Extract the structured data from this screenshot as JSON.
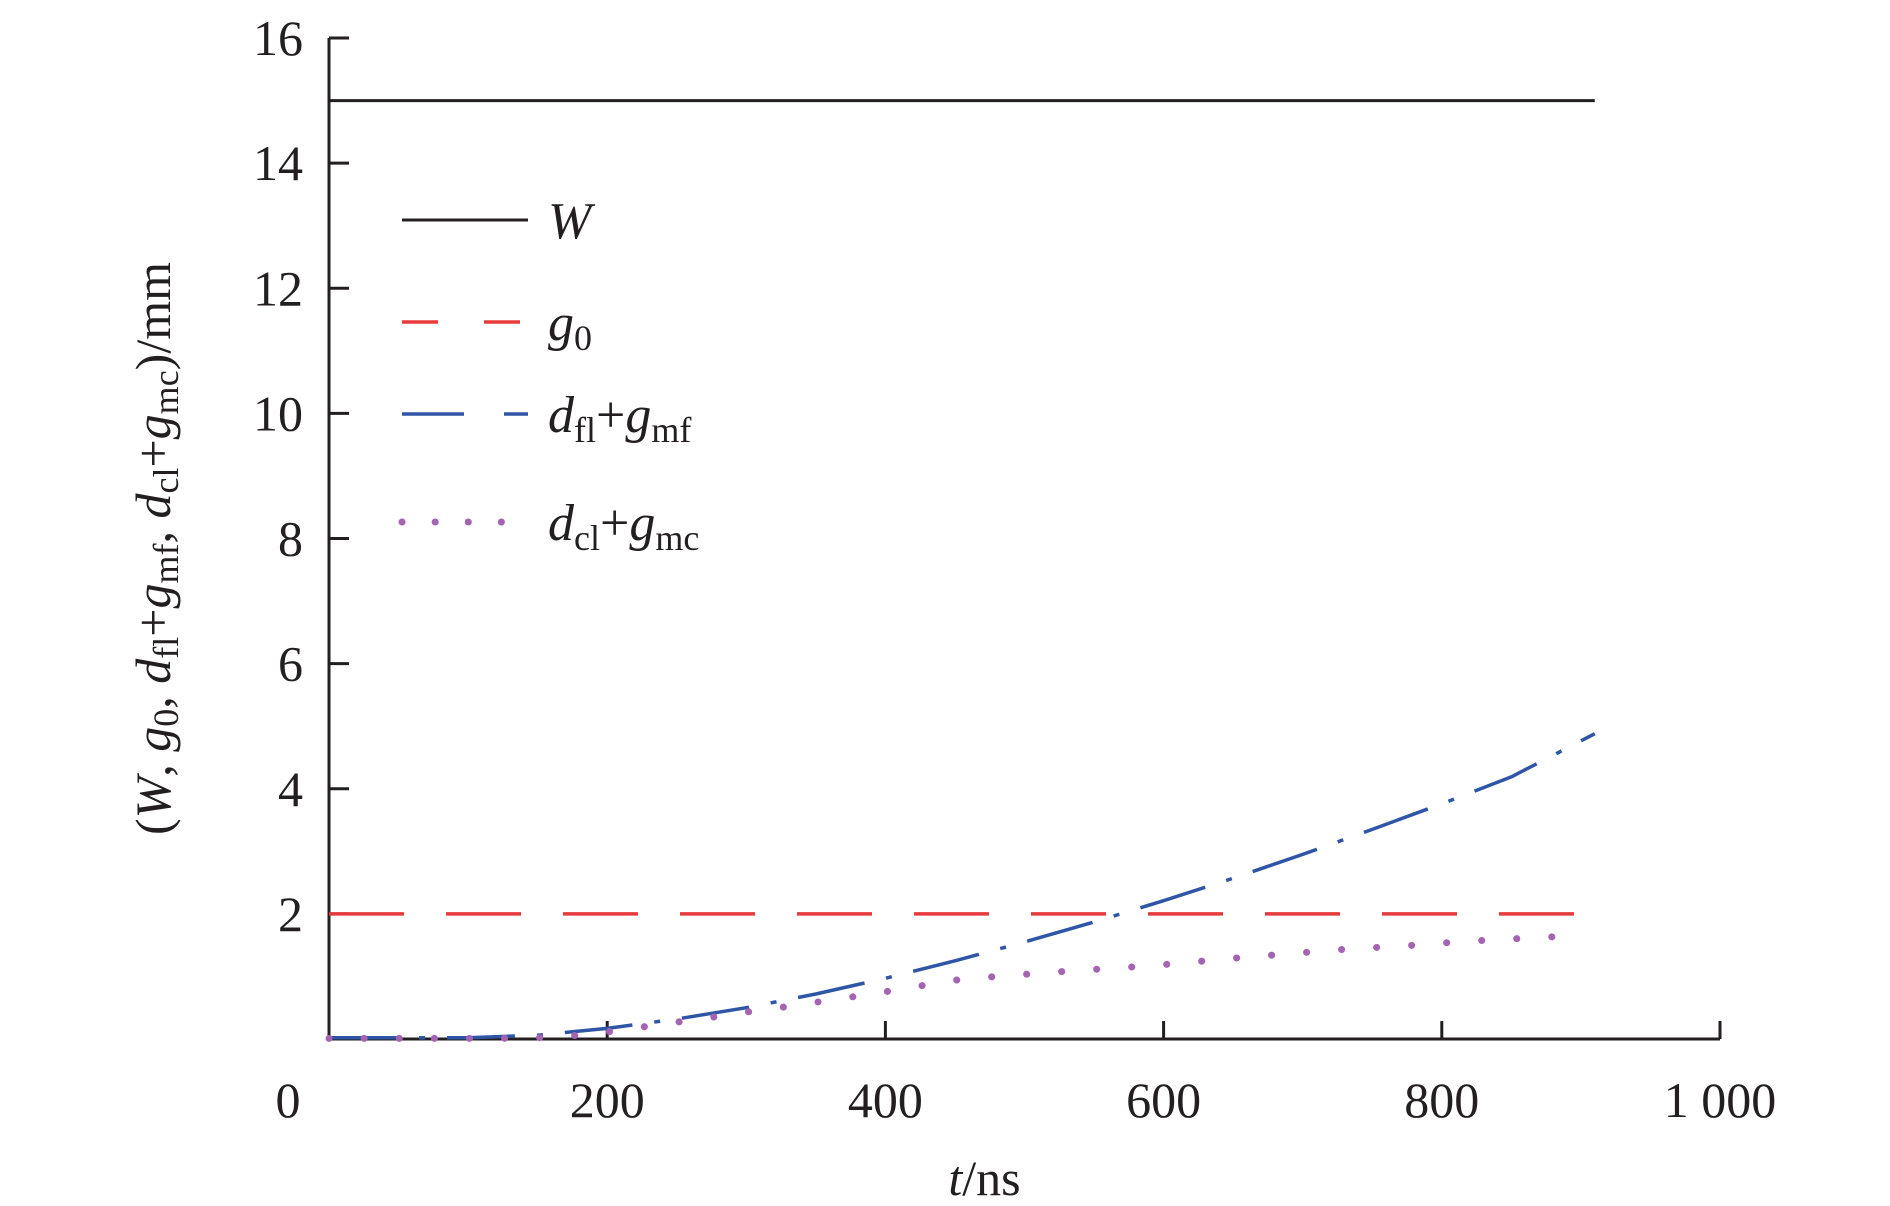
{
  "chart_data": {
    "type": "line",
    "title": "",
    "xlabel": {
      "var": "t",
      "unit": "/ns"
    },
    "ylabel": "(W, g0, dfl+gmf, dcl+gmc)/mm",
    "xlim": [
      0,
      1000
    ],
    "ylim": [
      0,
      16
    ],
    "x_ticks": [
      0,
      200,
      400,
      600,
      800,
      1000
    ],
    "x_tick_labels": [
      "0",
      "200",
      "400",
      "600",
      "800",
      "1 000"
    ],
    "y_ticks": [
      2,
      4,
      6,
      8,
      10,
      12,
      14,
      16
    ],
    "y_tick_labels": [
      "2",
      "4",
      "6",
      "8",
      "10",
      "12",
      "14",
      "16"
    ],
    "grid": false,
    "legend_position": "top-left",
    "series": [
      {
        "name": "W",
        "label_parts": [
          {
            "base": "W",
            "sub": ""
          }
        ],
        "style": "solid",
        "color": "#231f20",
        "x": [
          0,
          910
        ],
        "y": [
          15,
          15
        ]
      },
      {
        "name": "g0",
        "label_parts": [
          {
            "base": "g",
            "sub": "0"
          }
        ],
        "style": "dash",
        "color": "#e63b3b",
        "x": [
          0,
          900
        ],
        "y": [
          2,
          2
        ]
      },
      {
        "name": "dfl+gmf",
        "label_parts": [
          {
            "base": "d",
            "sub": "fl"
          },
          {
            "op": "+"
          },
          {
            "base": "g",
            "sub": "mf"
          }
        ],
        "style": "dashdot",
        "color": "#2f56a6",
        "x": [
          0,
          100,
          150,
          200,
          250,
          300,
          350,
          400,
          450,
          500,
          550,
          600,
          650,
          700,
          750,
          800,
          850,
          910
        ],
        "y": [
          0.02,
          0.02,
          0.06,
          0.17,
          0.32,
          0.5,
          0.72,
          0.97,
          1.25,
          1.55,
          1.87,
          2.21,
          2.57,
          2.95,
          3.35,
          3.76,
          4.19,
          4.88
        ]
      },
      {
        "name": "dcl+gmc",
        "label_parts": [
          {
            "base": "d",
            "sub": "cl"
          },
          {
            "op": "+"
          },
          {
            "base": "g",
            "sub": "mc"
          }
        ],
        "style": "dot",
        "color": "#a563b3",
        "x": [
          0,
          30,
          60,
          90,
          120,
          150,
          180,
          210,
          240,
          270,
          300,
          330,
          360,
          390,
          420,
          450,
          480,
          510,
          540,
          570,
          600,
          630,
          660,
          690,
          720,
          750,
          780,
          810,
          840,
          870,
          900
        ],
        "y": [
          0.01,
          0.01,
          0.01,
          0.01,
          0.01,
          0.02,
          0.06,
          0.14,
          0.24,
          0.33,
          0.43,
          0.52,
          0.62,
          0.72,
          0.83,
          0.94,
          1.0,
          1.05,
          1.1,
          1.14,
          1.19,
          1.25,
          1.31,
          1.36,
          1.42,
          1.46,
          1.5,
          1.55,
          1.59,
          1.62,
          1.66
        ]
      }
    ]
  }
}
